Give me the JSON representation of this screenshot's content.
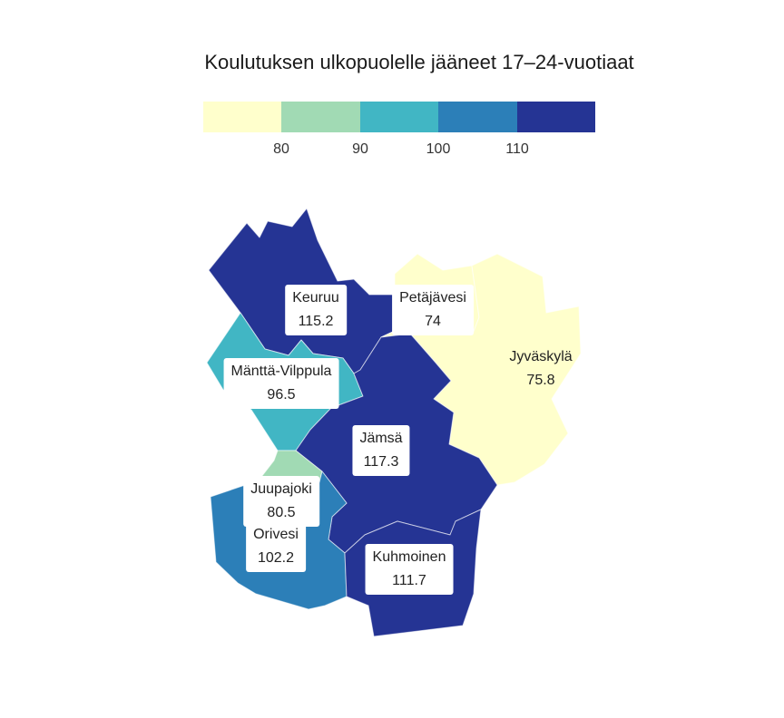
{
  "title": "Koulutuksen ulkopuolelle jääneet 17–24-vuotiaat",
  "legend": {
    "colors": [
      "#ffffcc",
      "#a1dab4",
      "#41b6c4",
      "#2c7fb8",
      "#253494"
    ],
    "ticks": [
      "80",
      "90",
      "100",
      "110"
    ]
  },
  "regions": [
    {
      "name": "Keuruu",
      "value": "115.2",
      "color": "#253494"
    },
    {
      "name": "Petäjävesi",
      "value": "74",
      "color": "#ffffcc"
    },
    {
      "name": "Jyväskylä",
      "value": "75.8",
      "color": "#ffffcc"
    },
    {
      "name": "Mänttä-Vilppula",
      "value": "96.5",
      "color": "#41b6c4"
    },
    {
      "name": "Jämsä",
      "value": "117.3",
      "color": "#253494"
    },
    {
      "name": "Juupajoki",
      "value": "80.5",
      "color": "#a1dab4"
    },
    {
      "name": "Orivesi",
      "value": "102.2",
      "color": "#2c7fb8"
    },
    {
      "name": "Kuhmoinen",
      "value": "111.7",
      "color": "#253494"
    }
  ]
}
